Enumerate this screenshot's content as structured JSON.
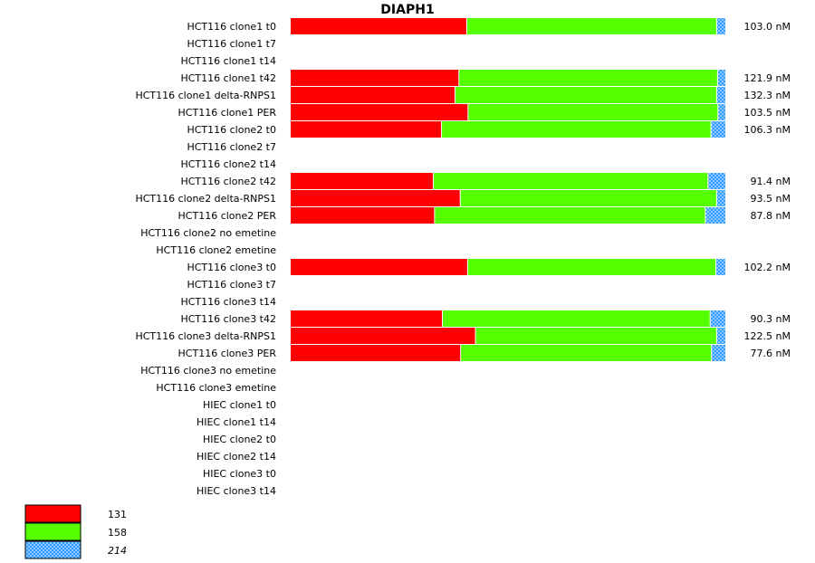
{
  "chart_data": {
    "type": "bar",
    "orientation": "horizontal",
    "stacked": true,
    "normalized": true,
    "title": "DIAPH1",
    "categories": [
      "HCT116 clone1 t0",
      "HCT116 clone1 t7",
      "HCT116 clone1 t14",
      "HCT116 clone1 t42",
      "HCT116 clone1 delta-RNPS1",
      "HCT116 clone1 PER",
      "HCT116 clone2 t0",
      "HCT116 clone2 t7",
      "HCT116 clone2 t14",
      "HCT116 clone2 t42",
      "HCT116 clone2 delta-RNPS1",
      "HCT116 clone2 PER",
      "HCT116 clone2 no emetine",
      "HCT116 clone2 emetine",
      "HCT116 clone3 t0",
      "HCT116 clone3 t7",
      "HCT116 clone3 t14",
      "HCT116 clone3 t42",
      "HCT116 clone3 delta-RNPS1",
      "HCT116 clone3 PER",
      "HCT116 clone3 no emetine",
      "HCT116 clone3 emetine",
      "HIEC clone1 t0",
      "HIEC clone1 t14",
      "HIEC clone2 t0",
      "HIEC clone2 t14",
      "HIEC clone3 t0",
      "HIEC clone3 t14"
    ],
    "series": [
      {
        "name": "131",
        "color": "#ff0000",
        "pattern": "solid",
        "values": [
          0.405,
          null,
          null,
          0.387,
          0.378,
          0.408,
          0.347,
          null,
          null,
          0.328,
          0.39,
          0.331,
          null,
          null,
          0.407,
          null,
          null,
          0.349,
          0.425,
          0.391,
          null,
          null,
          null,
          null,
          null,
          null,
          null,
          null
        ]
      },
      {
        "name": "158",
        "color": "#55ff00",
        "pattern": "solid",
        "values": [
          0.575,
          null,
          null,
          0.595,
          0.602,
          0.575,
          0.62,
          null,
          null,
          0.632,
          0.59,
          0.623,
          null,
          null,
          0.571,
          null,
          null,
          0.616,
          0.555,
          0.577,
          null,
          null,
          null,
          null,
          null,
          null,
          null,
          null
        ]
      },
      {
        "name": "214",
        "color": "#1e90ff",
        "pattern": "hatched",
        "italic": true,
        "values": [
          0.02,
          null,
          null,
          0.018,
          0.02,
          0.017,
          0.033,
          null,
          null,
          0.04,
          0.02,
          0.046,
          null,
          null,
          0.022,
          null,
          null,
          0.035,
          0.02,
          0.032,
          null,
          null,
          null,
          null,
          null,
          null,
          null,
          null
        ]
      }
    ],
    "totals": [
      "103.0 nM",
      "",
      "",
      "121.9 nM",
      "132.3 nM",
      "103.5 nM",
      "106.3 nM",
      "",
      "",
      "91.4 nM",
      "93.5 nM",
      "87.8 nM",
      "",
      "",
      "102.2 nM",
      "",
      "",
      "90.3 nM",
      "122.5 nM",
      "77.6 nM",
      "",
      "",
      "",
      "",
      "",
      "",
      "",
      ""
    ],
    "legend": {
      "placement": "bottom-left"
    },
    "grid": false
  }
}
